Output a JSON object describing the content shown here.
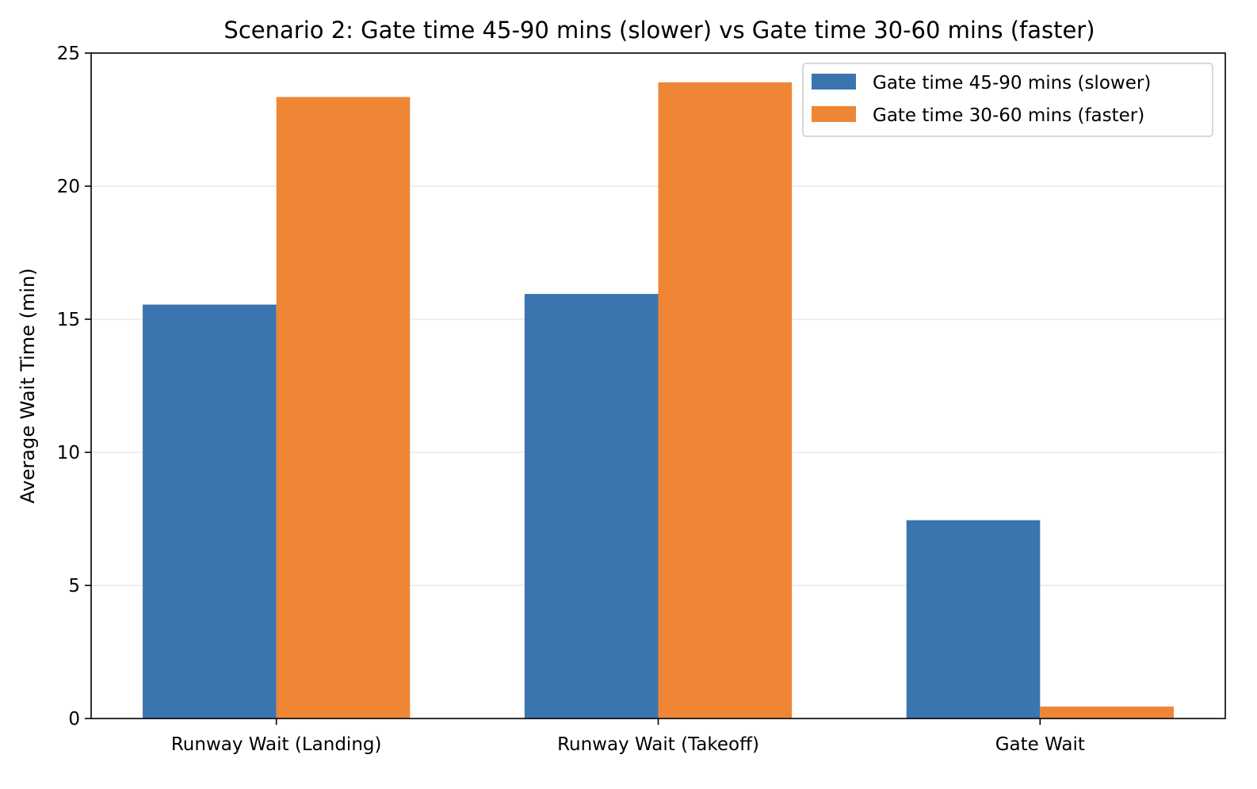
{
  "chart_data": {
    "type": "bar",
    "title": "Scenario 2: Gate time 45-90 mins (slower) vs Gate time 30-60 mins (faster)",
    "xlabel": "",
    "ylabel": "Average Wait Time (min)",
    "categories": [
      "Runway Wait (Landing)",
      "Runway Wait (Takeoff)",
      "Gate Wait"
    ],
    "series": [
      {
        "name": "Gate time 45-90 mins (slower)",
        "color": "#3b75af",
        "values": [
          15.55,
          15.95,
          7.45
        ]
      },
      {
        "name": "Gate time 30-60 mins (faster)",
        "color": "#ef8636",
        "values": [
          23.35,
          23.9,
          0.45
        ]
      }
    ],
    "ylim": [
      0,
      25
    ],
    "yticks": [
      0,
      5,
      10,
      15,
      20,
      25
    ],
    "grid": "horizontal",
    "legend_position": "top-right"
  }
}
